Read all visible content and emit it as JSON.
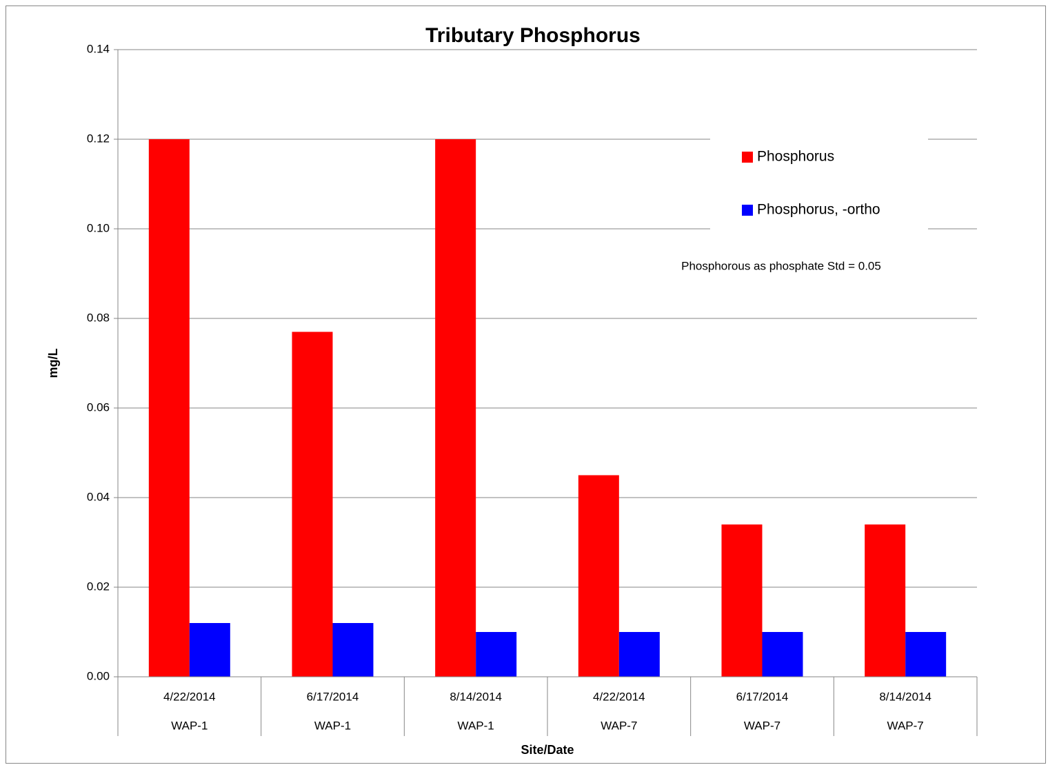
{
  "chart_data": {
    "type": "bar",
    "title": "Tributary Phosphorus",
    "x_label": "Site/Date",
    "y_label": "mg/L",
    "categories": [
      "4/22/2014",
      "6/17/2014",
      "8/14/2014",
      "4/22/2014",
      "6/17/2014",
      "8/14/2014"
    ],
    "sites": [
      "WAP-1",
      "WAP-1",
      "WAP-1",
      "WAP-7",
      "WAP-7",
      "WAP-7"
    ],
    "series": [
      {
        "name": "Phosphorus",
        "color": "#ff0000",
        "values": [
          0.12,
          0.077,
          0.12,
          0.045,
          0.034,
          0.034
        ]
      },
      {
        "name": "Phosphorus, -ortho",
        "color": "#0000ff",
        "values": [
          0.012,
          0.012,
          0.01,
          0.01,
          0.01,
          0.01
        ]
      }
    ],
    "annotation": "Phosphorous as phosphate Std = 0.05",
    "ylim": [
      0,
      0.14
    ],
    "yticks": [
      {
        "value": 0,
        "label": "0.00"
      },
      0.02,
      0.04,
      0.06,
      0.08,
      {
        "value": 0.1,
        "label": "0.10"
      },
      0.12,
      0.14
    ],
    "grid": true,
    "legend": "right"
  }
}
